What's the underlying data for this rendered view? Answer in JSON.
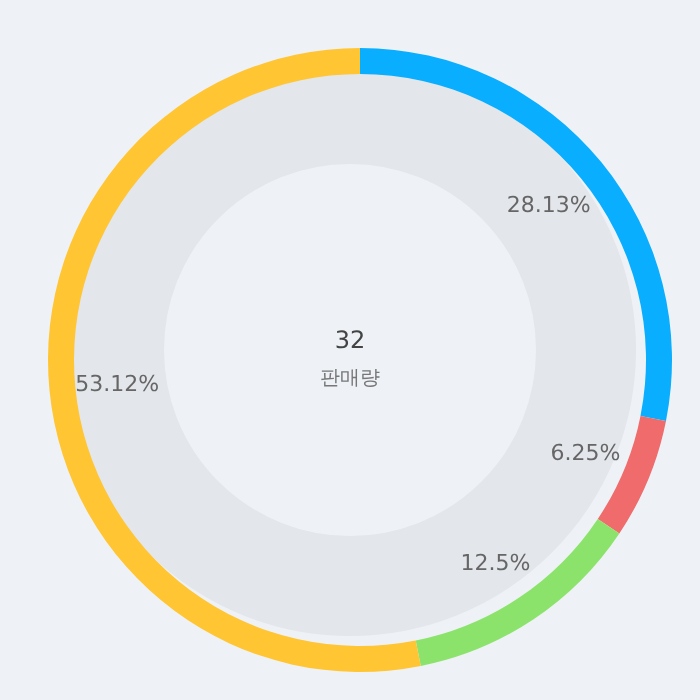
{
  "chart_data": {
    "type": "donut",
    "title": "32",
    "subtitle": "판매량",
    "categories": [
      null,
      null,
      null,
      null
    ],
    "values": [
      28.13,
      6.25,
      12.5,
      53.12
    ],
    "colors": [
      "#0aaeff",
      "#f06b6b",
      "#8ce36b",
      "#ffc533"
    ],
    "value_labels": [
      "28.13%",
      "6.25%",
      "12.5%",
      "53.12%"
    ],
    "legend": false
  }
}
